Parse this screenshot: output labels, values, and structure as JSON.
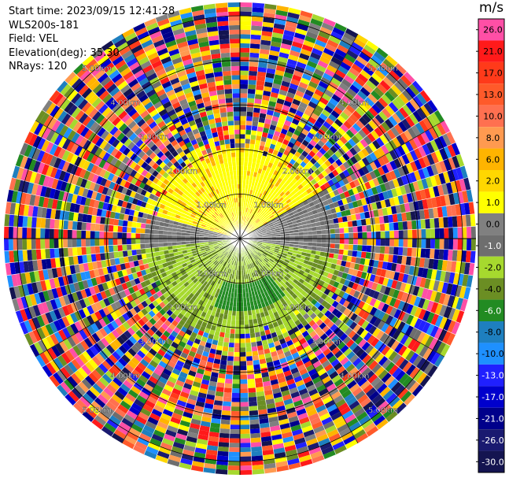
{
  "header": {
    "start_time": "Start time: 2023/09/15 12:41:28",
    "instrument": "WLS200s-181",
    "field": "Field: VEL",
    "elevation": "Elevation(deg): 35.30",
    "nrays": "NRays: 120"
  },
  "colorbar": {
    "title": "m/s",
    "entries": [
      {
        "label": "26.0",
        "color": "#ff4fa6"
      },
      {
        "label": "21.0",
        "color": "#ff1a1a"
      },
      {
        "label": "17.0",
        "color": "#ff3a1a"
      },
      {
        "label": "13.0",
        "color": "#ff5a2a"
      },
      {
        "label": "10.0",
        "color": "#ff7050"
      },
      {
        "label": "8.0",
        "color": "#ff9a50"
      },
      {
        "label": "6.0",
        "color": "#ffb400"
      },
      {
        "label": "2.0",
        "color": "#ffd700"
      },
      {
        "label": "1.0",
        "color": "#ffff00"
      },
      {
        "label": "0.0",
        "color": "#808080"
      },
      {
        "label": "-1.0",
        "color": "#6e6e6e"
      },
      {
        "label": "-2.0",
        "color": "#a6d92e"
      },
      {
        "label": "-4.0",
        "color": "#6b8e23"
      },
      {
        "label": "-6.0",
        "color": "#228b22"
      },
      {
        "label": "-8.0",
        "color": "#1e7fbf"
      },
      {
        "label": "-10.0",
        "color": "#1e90ff"
      },
      {
        "label": "-13.0",
        "color": "#2020ff"
      },
      {
        "label": "-17.0",
        "color": "#0000cd"
      },
      {
        "label": "-21.0",
        "color": "#00008b"
      },
      {
        "label": "-26.0",
        "color": "#1a1a70"
      },
      {
        "label": "-30.0",
        "color": "#141450"
      }
    ]
  },
  "range_ring_labels": [
    "1.00km",
    "2.00km",
    "3.00km",
    "4.00km",
    "5.00km"
  ],
  "chart_data": {
    "type": "heatmap",
    "projection": "polar PPI",
    "field": "VEL",
    "units": "m/s",
    "n_rays": 120,
    "elevation_deg": 35.3,
    "range_rings_km": [
      1,
      2,
      3,
      4,
      5
    ],
    "max_range_km": 5.3,
    "color_levels": [
      26.0,
      21.0,
      17.0,
      13.0,
      10.0,
      8.0,
      6.0,
      2.0,
      1.0,
      0.0,
      -1.0,
      -2.0,
      -4.0,
      -6.0,
      -8.0,
      -10.0,
      -13.0,
      -17.0,
      -21.0,
      -26.0,
      -30.0
    ],
    "regions": [
      {
        "desc": "positive velocities north half",
        "sector_deg": [
          -95,
          80
        ],
        "range_km": [
          0.2,
          2.4
        ],
        "value_mps": 1.5
      },
      {
        "desc": "negative velocities south half",
        "sector_deg": [
          90,
          260
        ],
        "range_km": [
          0.2,
          3.2
        ],
        "value_mps": -3.0
      },
      {
        "desc": "transition band",
        "sector_deg": [
          60,
          100
        ],
        "range_km": [
          0.5,
          2.2
        ],
        "value_mps": 0.0
      },
      {
        "desc": "strong negative core",
        "sector_deg": [
          140,
          200
        ],
        "range_km": [
          1.0,
          1.6
        ],
        "value_mps": -6.0
      },
      {
        "desc": "noise beyond valid range",
        "range_km": [
          2.5,
          5.3
        ],
        "value_mps": null
      }
    ]
  }
}
